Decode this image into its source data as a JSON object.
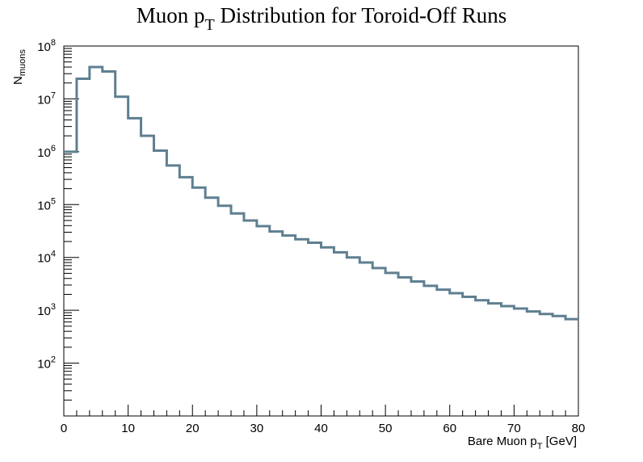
{
  "chart_data": {
    "type": "histogram",
    "title": {
      "main": "Muon p",
      "sub": "T",
      "rest": " Distribution for Toroid-Off Runs"
    },
    "xlabel": {
      "main": "Bare Muon p",
      "sub": "T",
      "rest": " [GeV]"
    },
    "ylabel": {
      "main": "N",
      "sub": "muons"
    },
    "xlim": [
      0,
      80
    ],
    "ylim": [
      10,
      100000000
    ],
    "yscale": "log",
    "x_ticks": [
      "0",
      "10",
      "20",
      "30",
      "40",
      "50",
      "60",
      "70",
      "80"
    ],
    "y_ticks": [
      {
        "base": "10",
        "exp": "2"
      },
      {
        "base": "10",
        "exp": "3"
      },
      {
        "base": "10",
        "exp": "4"
      },
      {
        "base": "10",
        "exp": "5"
      },
      {
        "base": "10",
        "exp": "6"
      },
      {
        "base": "10",
        "exp": "7"
      },
      {
        "base": "10",
        "exp": "8"
      }
    ],
    "bin_width": 2,
    "bin_edges_start": 0,
    "values": [
      1000000,
      24000000,
      40000000,
      33000000,
      11000000,
      4300000,
      2000000,
      1050000,
      550000,
      330000,
      210000,
      135000,
      95000,
      68000,
      50000,
      39000,
      31000,
      26000,
      22000,
      19000,
      15500,
      12500,
      10000,
      8000,
      6300,
      5100,
      4200,
      3500,
      2900,
      2450,
      2100,
      1800,
      1550,
      1350,
      1200,
      1080,
      950,
      850,
      780,
      680
    ],
    "line_color": "#5f7f91",
    "grid": false,
    "legend": "none"
  }
}
